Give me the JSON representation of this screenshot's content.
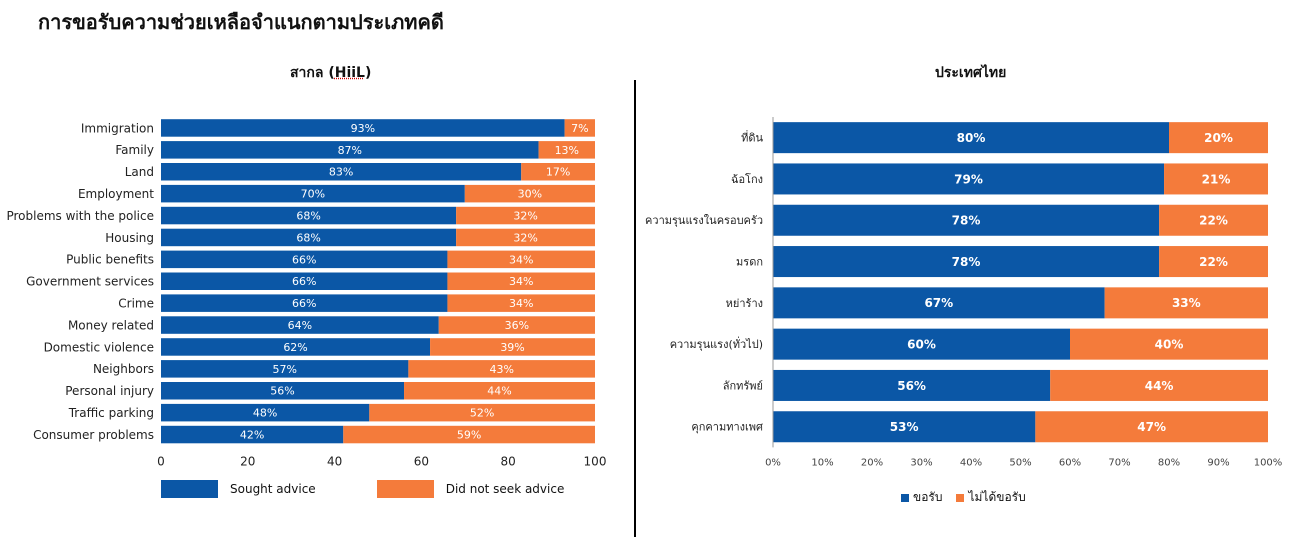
{
  "page_title": "การขอรับความช่วยเหลือจำแนกตามประเภทคดี",
  "colors": {
    "sought": "#0b57a6",
    "not_sought": "#f47b3b"
  },
  "chart_data": [
    {
      "type": "bar",
      "orientation": "horizontal",
      "stacked": true,
      "title_prefix": "สากล (",
      "title_source": "HiiL",
      "title_suffix": ")",
      "categories": [
        "Immigration",
        "Family",
        "Land",
        "Employment",
        "Problems with the police",
        "Housing",
        "Public benefits",
        "Government services",
        "Crime",
        "Money related",
        "Domestic violence",
        "Neighbors",
        "Personal injury",
        "Traffic parking",
        "Consumer problems"
      ],
      "series": [
        {
          "name": "Sought advice",
          "values": [
            93,
            87,
            83,
            70,
            68,
            68,
            66,
            66,
            66,
            64,
            62,
            57,
            56,
            48,
            42
          ]
        },
        {
          "name": "Did not seek advice",
          "values": [
            7,
            13,
            17,
            30,
            32,
            32,
            34,
            34,
            34,
            36,
            39,
            43,
            44,
            52,
            59
          ]
        }
      ],
      "data_labels": [
        [
          "93%",
          "87%",
          "83%",
          "70%",
          "68%",
          "68%",
          "66%",
          "66%",
          "66%",
          "64%",
          "62%",
          "57%",
          "56%",
          "48%",
          "42%"
        ],
        [
          "7%",
          "13%",
          "17%",
          "30%",
          "32%",
          "32%",
          "34%",
          "34%",
          "34%",
          "36%",
          "39%",
          "43%",
          "44%",
          "52%",
          "59%"
        ]
      ],
      "xlim": [
        0,
        100
      ],
      "xticks": [
        "0",
        "20",
        "40",
        "60",
        "80",
        "100"
      ],
      "grid": false,
      "legend_position": "bottom"
    },
    {
      "type": "bar",
      "orientation": "horizontal",
      "stacked": true,
      "title": "ประเทศไทย",
      "categories": [
        "ที่ดิน",
        "ฉ้อโกง",
        "ความรุนแรงในครอบครัว",
        "มรดก",
        "หย่าร้าง",
        "ความรุนแรง(ทั่วไป)",
        "ลักทรัพย์",
        "คุกคามทางเพศ"
      ],
      "series": [
        {
          "name": "ขอรับ",
          "values": [
            80,
            79,
            78,
            78,
            67,
            60,
            56,
            53
          ]
        },
        {
          "name": "ไม่ได้ขอรับ",
          "values": [
            20,
            21,
            22,
            22,
            33,
            40,
            44,
            47
          ]
        }
      ],
      "data_labels": [
        [
          "80%",
          "79%",
          "78%",
          "78%",
          "67%",
          "60%",
          "56%",
          "53%"
        ],
        [
          "20%",
          "21%",
          "22%",
          "22%",
          "33%",
          "40%",
          "44%",
          "47%"
        ]
      ],
      "xlim": [
        0,
        100
      ],
      "xticks": [
        "0%",
        "10%",
        "20%",
        "30%",
        "40%",
        "50%",
        "60%",
        "70%",
        "80%",
        "90%",
        "100%"
      ],
      "grid": false,
      "legend_position": "bottom"
    }
  ]
}
